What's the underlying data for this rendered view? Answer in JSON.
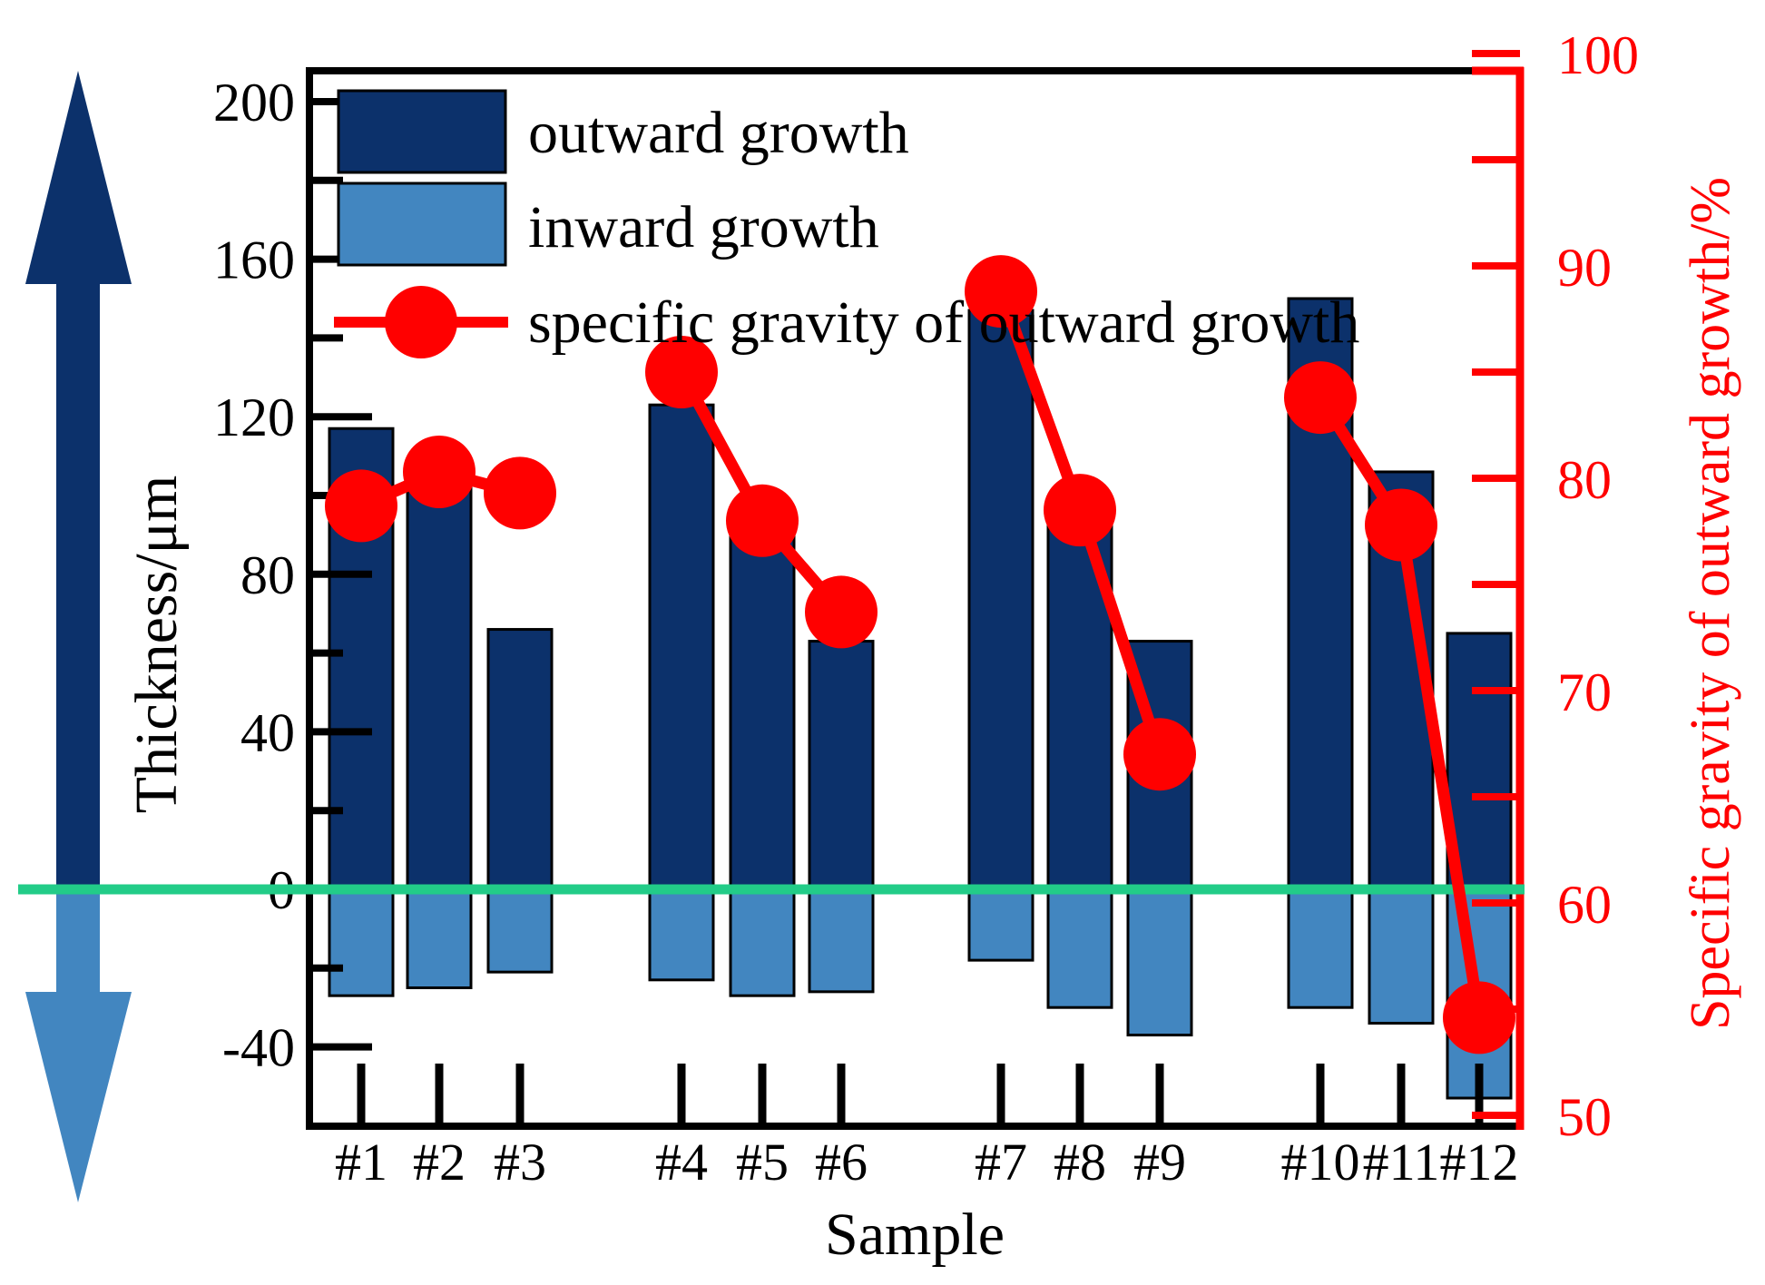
{
  "chart_data": {
    "type": "bar",
    "categories": [
      "#1",
      "#2",
      "#3",
      "#4",
      "#5",
      "#6",
      "#7",
      "#8",
      "#9",
      "#10",
      "#11",
      "#12"
    ],
    "series": [
      {
        "name": "outward growth",
        "kind": "bar",
        "axis": "left",
        "color": "#0c316b",
        "values": [
          117,
          104,
          66,
          123,
          90,
          63,
          147,
          98,
          63,
          150,
          106,
          65
        ]
      },
      {
        "name": "inward growth",
        "kind": "bar",
        "axis": "left",
        "color": "#4286c0",
        "values": [
          -27,
          -25,
          -21,
          -23,
          -27,
          -26,
          -18,
          -30,
          -37,
          -30,
          -34,
          -53
        ]
      },
      {
        "name": "specific gravity of outward growth",
        "kind": "line",
        "axis": "right",
        "color": "#ff0000",
        "values": [
          78.7,
          80.3,
          79.3,
          85.0,
          78.0,
          73.7,
          88.8,
          78.5,
          67.0,
          83.8,
          77.8,
          54.6
        ]
      }
    ],
    "xlabel": "Sample",
    "ylabel": "Thickness/μm",
    "y2label": "Specific gravity of outward growth/%",
    "ylim": [
      -60,
      210
    ],
    "y2lim": [
      50,
      100
    ],
    "yticks": [
      "200",
      "160",
      "120",
      "80",
      "40",
      "0",
      "-40"
    ],
    "y2ticks": [
      "100",
      "90",
      "80",
      "70",
      "60",
      "50"
    ],
    "legend_position": "top-left",
    "reference_line": {
      "y": 0,
      "color": "#22cc88"
    },
    "side_arrows": {
      "up_color": "#0c316b",
      "down_color": "#4286c0"
    }
  }
}
